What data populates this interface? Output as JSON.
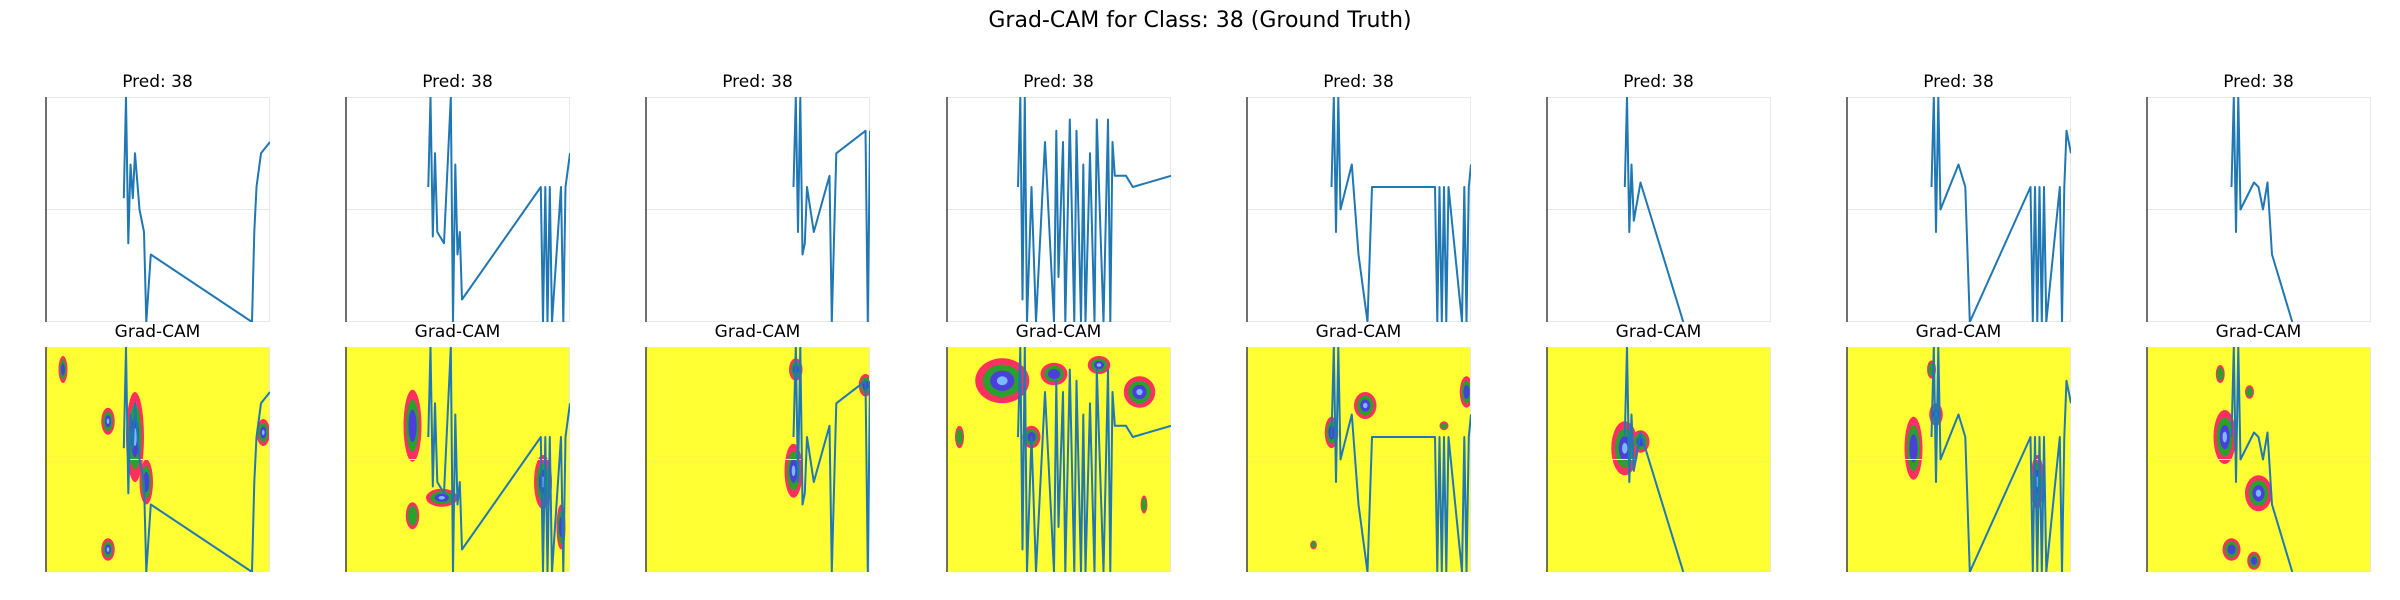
{
  "figure": {
    "title": "Grad-CAM for Class: 38 (Ground Truth)",
    "colors": {
      "trace": "#1f77b4",
      "heat_low": "#ffff33",
      "heat_edge": "#ff3060",
      "heat_mid": "#2ca02c",
      "heat_high": "#4a3fd8",
      "heat_peak": "#7ab8ff"
    }
  },
  "chart_data": [
    {
      "type": "line",
      "panel": 1,
      "row": "prediction",
      "title": "Pred: 38",
      "xlim": [
        0,
        100
      ],
      "ylim": [
        0,
        100
      ],
      "x": [
        35,
        36,
        37,
        38,
        39,
        40,
        42,
        44,
        45,
        47,
        92,
        93,
        94,
        96,
        100
      ],
      "y": [
        55,
        100,
        35,
        70,
        55,
        75,
        50,
        40,
        0,
        30,
        0,
        40,
        60,
        75,
        80
      ]
    },
    {
      "type": "line",
      "panel": 2,
      "row": "prediction",
      "title": "Pred: 38",
      "xlim": [
        0,
        100
      ],
      "ylim": [
        0,
        100
      ],
      "x": [
        37,
        38,
        39,
        40,
        41,
        44,
        47,
        48,
        49,
        50,
        51,
        52,
        87,
        88,
        89,
        90,
        91,
        92,
        96,
        97,
        98,
        100
      ],
      "y": [
        60,
        100,
        38,
        75,
        40,
        35,
        100,
        0,
        70,
        30,
        40,
        10,
        60,
        0,
        60,
        0,
        60,
        0,
        60,
        0,
        60,
        75
      ]
    },
    {
      "type": "line",
      "panel": 3,
      "row": "prediction",
      "title": "Pred: 38",
      "xlim": [
        0,
        100
      ],
      "ylim": [
        0,
        100
      ],
      "x": [
        66,
        67,
        68,
        69,
        70,
        71,
        72,
        75,
        82,
        83,
        85,
        98,
        99,
        100
      ],
      "y": [
        60,
        100,
        40,
        100,
        30,
        35,
        60,
        40,
        65,
        0,
        75,
        85,
        0,
        85
      ]
    },
    {
      "type": "line",
      "panel": 4,
      "row": "prediction",
      "title": "Pred: 38",
      "xlim": [
        0,
        100
      ],
      "ylim": [
        0,
        100
      ],
      "x": [
        32,
        33,
        34,
        35,
        36,
        38,
        40,
        44,
        48,
        49,
        50,
        52,
        53,
        55,
        57,
        58,
        60,
        61,
        62,
        64,
        66,
        67,
        68,
        70,
        72,
        73,
        74,
        75,
        80,
        83,
        100
      ],
      "y": [
        60,
        100,
        10,
        100,
        0,
        60,
        0,
        80,
        0,
        85,
        20,
        80,
        0,
        90,
        0,
        85,
        0,
        70,
        0,
        75,
        0,
        90,
        60,
        0,
        90,
        0,
        80,
        65,
        65,
        60,
        65
      ]
    },
    {
      "type": "line",
      "panel": 5,
      "row": "prediction",
      "title": "Pred: 38",
      "xlim": [
        0,
        100
      ],
      "ylim": [
        0,
        100
      ],
      "x": [
        38,
        39,
        40,
        41,
        42,
        47,
        50,
        54,
        56,
        84,
        85,
        86,
        87,
        88,
        89,
        90,
        96,
        97,
        98,
        99,
        100
      ],
      "y": [
        60,
        100,
        40,
        100,
        50,
        70,
        30,
        0,
        60,
        60,
        0,
        60,
        0,
        60,
        0,
        60,
        0,
        60,
        0,
        60,
        70
      ]
    },
    {
      "type": "line",
      "panel": 6,
      "row": "prediction",
      "title": "Pred: 38",
      "xlim": [
        0,
        100
      ],
      "ylim": [
        0,
        100
      ],
      "x": [
        35,
        36,
        37,
        38,
        39,
        42,
        61
      ],
      "y": [
        60,
        100,
        40,
        70,
        45,
        62,
        0
      ]
    },
    {
      "type": "line",
      "panel": 7,
      "row": "prediction",
      "title": "Pred: 38",
      "xlim": [
        0,
        100
      ],
      "ylim": [
        0,
        100
      ],
      "x": [
        38,
        39,
        40,
        41,
        42,
        50,
        53,
        55,
        82,
        83,
        84,
        85,
        86,
        87,
        88,
        89,
        95,
        96,
        97,
        98,
        100
      ],
      "y": [
        60,
        100,
        40,
        100,
        50,
        70,
        60,
        0,
        60,
        0,
        60,
        0,
        60,
        0,
        60,
        0,
        60,
        0,
        60,
        85,
        75
      ]
    },
    {
      "type": "line",
      "panel": 8,
      "row": "prediction",
      "title": "Pred: 38",
      "xlim": [
        0,
        100
      ],
      "ylim": [
        0,
        100
      ],
      "x": [
        38,
        39,
        40,
        41,
        42,
        48,
        50,
        52,
        54,
        56,
        65
      ],
      "y": [
        60,
        100,
        40,
        100,
        50,
        62,
        60,
        50,
        62,
        30,
        0
      ]
    },
    {
      "type": "heatmap",
      "panel": 1,
      "row": "grad-cam",
      "title": "Grad-CAM",
      "xlim": [
        0,
        100
      ],
      "ylim": [
        0,
        100
      ],
      "overlay": {
        "x": [
          35,
          36,
          37,
          38,
          39,
          40,
          42,
          44,
          45,
          47,
          92,
          93,
          94,
          96,
          100
        ],
        "y": [
          55,
          100,
          35,
          70,
          55,
          75,
          50,
          40,
          0,
          30,
          0,
          40,
          60,
          75,
          80
        ]
      },
      "hotspots": [
        {
          "x": 28,
          "y": 67,
          "rx": 3,
          "ry": 6,
          "intensity": 0.9
        },
        {
          "x": 28,
          "y": 10,
          "rx": 3,
          "ry": 5,
          "intensity": 0.95
        },
        {
          "x": 40,
          "y": 60,
          "rx": 4,
          "ry": 20,
          "intensity": 1.0
        },
        {
          "x": 45,
          "y": 40,
          "rx": 3,
          "ry": 10,
          "intensity": 0.8
        },
        {
          "x": 97,
          "y": 62,
          "rx": 3,
          "ry": 6,
          "intensity": 1.0
        },
        {
          "x": 8,
          "y": 90,
          "rx": 2,
          "ry": 6,
          "intensity": 0.7
        }
      ]
    },
    {
      "type": "heatmap",
      "panel": 2,
      "row": "grad-cam",
      "title": "Grad-CAM",
      "xlim": [
        0,
        100
      ],
      "ylim": [
        0,
        100
      ],
      "overlay": {
        "x": [
          37,
          38,
          39,
          40,
          41,
          44,
          47,
          48,
          49,
          50,
          51,
          52,
          87,
          88,
          89,
          90,
          91,
          92,
          96,
          97,
          98,
          100
        ],
        "y": [
          60,
          100,
          38,
          75,
          40,
          35,
          100,
          0,
          70,
          30,
          40,
          10,
          60,
          0,
          60,
          0,
          60,
          0,
          60,
          0,
          60,
          75
        ]
      },
      "hotspots": [
        {
          "x": 30,
          "y": 65,
          "rx": 4,
          "ry": 16,
          "intensity": 0.8
        },
        {
          "x": 43,
          "y": 33,
          "rx": 7,
          "ry": 4,
          "intensity": 0.95
        },
        {
          "x": 88,
          "y": 40,
          "rx": 4,
          "ry": 12,
          "intensity": 0.9
        },
        {
          "x": 96,
          "y": 20,
          "rx": 2,
          "ry": 10,
          "intensity": 0.7
        },
        {
          "x": 30,
          "y": 25,
          "rx": 3,
          "ry": 6,
          "intensity": 0.6
        }
      ]
    },
    {
      "type": "heatmap",
      "panel": 3,
      "row": "grad-cam",
      "title": "Grad-CAM",
      "xlim": [
        0,
        100
      ],
      "ylim": [
        0,
        100
      ],
      "overlay": {
        "x": [
          66,
          67,
          68,
          69,
          70,
          71,
          72,
          75,
          82,
          83,
          85,
          98,
          99,
          100
        ],
        "y": [
          60,
          100,
          40,
          100,
          30,
          35,
          60,
          40,
          65,
          0,
          75,
          85,
          0,
          85
        ]
      },
      "hotspots": [
        {
          "x": 66,
          "y": 45,
          "rx": 4,
          "ry": 12,
          "intensity": 1.0
        },
        {
          "x": 67,
          "y": 90,
          "rx": 3,
          "ry": 5,
          "intensity": 0.7
        },
        {
          "x": 98,
          "y": 83,
          "rx": 3,
          "ry": 5,
          "intensity": 0.8
        }
      ]
    },
    {
      "type": "heatmap",
      "panel": 4,
      "row": "grad-cam",
      "title": "Grad-CAM",
      "xlim": [
        0,
        100
      ],
      "ylim": [
        0,
        100
      ],
      "overlay": {
        "x": [
          32,
          33,
          34,
          35,
          36,
          38,
          40,
          44,
          48,
          49,
          50,
          52,
          53,
          55,
          57,
          58,
          60,
          61,
          62,
          64,
          66,
          67,
          68,
          70,
          72,
          73,
          74,
          75,
          80,
          83,
          100
        ],
        "y": [
          60,
          100,
          10,
          100,
          0,
          60,
          0,
          80,
          0,
          85,
          20,
          80,
          0,
          90,
          0,
          85,
          0,
          70,
          0,
          75,
          0,
          90,
          60,
          0,
          90,
          0,
          80,
          65,
          65,
          60,
          65
        ]
      },
      "hotspots": [
        {
          "x": 25,
          "y": 85,
          "rx": 12,
          "ry": 10,
          "intensity": 0.9
        },
        {
          "x": 48,
          "y": 88,
          "rx": 6,
          "ry": 5,
          "intensity": 0.8
        },
        {
          "x": 68,
          "y": 92,
          "rx": 5,
          "ry": 4,
          "intensity": 0.9
        },
        {
          "x": 86,
          "y": 80,
          "rx": 7,
          "ry": 7,
          "intensity": 1.0
        },
        {
          "x": 38,
          "y": 60,
          "rx": 4,
          "ry": 5,
          "intensity": 0.7
        },
        {
          "x": 6,
          "y": 60,
          "rx": 2,
          "ry": 5,
          "intensity": 0.6
        },
        {
          "x": 88,
          "y": 30,
          "rx": 1.5,
          "ry": 4,
          "intensity": 0.5
        }
      ]
    },
    {
      "type": "heatmap",
      "panel": 5,
      "row": "grad-cam",
      "title": "Grad-CAM",
      "xlim": [
        0,
        100
      ],
      "ylim": [
        0,
        100
      ],
      "overlay": {
        "x": [
          38,
          39,
          40,
          41,
          42,
          47,
          50,
          54,
          56,
          84,
          85,
          86,
          87,
          88,
          89,
          90,
          96,
          97,
          98,
          99,
          100
        ],
        "y": [
          60,
          100,
          40,
          100,
          50,
          70,
          30,
          0,
          60,
          60,
          0,
          60,
          0,
          60,
          0,
          60,
          0,
          60,
          0,
          60,
          70
        ]
      },
      "hotspots": [
        {
          "x": 38,
          "y": 62,
          "rx": 3,
          "ry": 7,
          "intensity": 0.8
        },
        {
          "x": 53,
          "y": 74,
          "rx": 5,
          "ry": 6,
          "intensity": 1.0
        },
        {
          "x": 98,
          "y": 80,
          "rx": 3,
          "ry": 7,
          "intensity": 0.7
        },
        {
          "x": 88,
          "y": 65,
          "rx": 2,
          "ry": 2,
          "intensity": 0.5
        },
        {
          "x": 30,
          "y": 12,
          "rx": 1.5,
          "ry": 2,
          "intensity": 0.4
        }
      ]
    },
    {
      "type": "heatmap",
      "panel": 6,
      "row": "grad-cam",
      "title": "Grad-CAM",
      "xlim": [
        0,
        100
      ],
      "ylim": [
        0,
        100
      ],
      "overlay": {
        "x": [
          35,
          36,
          37,
          38,
          39,
          42,
          61
        ],
        "y": [
          60,
          100,
          40,
          70,
          45,
          62,
          0
        ]
      },
      "hotspots": [
        {
          "x": 35,
          "y": 55,
          "rx": 6,
          "ry": 12,
          "intensity": 1.0
        },
        {
          "x": 42,
          "y": 58,
          "rx": 4,
          "ry": 5,
          "intensity": 0.7
        }
      ]
    },
    {
      "type": "heatmap",
      "panel": 7,
      "row": "grad-cam",
      "title": "Grad-CAM",
      "xlim": [
        0,
        100
      ],
      "ylim": [
        0,
        100
      ],
      "overlay": {
        "x": [
          38,
          39,
          40,
          41,
          42,
          50,
          53,
          55,
          82,
          83,
          84,
          85,
          86,
          87,
          88,
          89,
          95,
          96,
          97,
          98,
          100
        ],
        "y": [
          60,
          100,
          40,
          100,
          50,
          70,
          60,
          0,
          60,
          0,
          60,
          0,
          60,
          0,
          60,
          0,
          60,
          0,
          60,
          85,
          75
        ]
      },
      "hotspots": [
        {
          "x": 30,
          "y": 55,
          "rx": 4,
          "ry": 14,
          "intensity": 0.8
        },
        {
          "x": 40,
          "y": 70,
          "rx": 3,
          "ry": 5,
          "intensity": 0.9
        },
        {
          "x": 38,
          "y": 90,
          "rx": 2,
          "ry": 4,
          "intensity": 0.6
        },
        {
          "x": 85,
          "y": 40,
          "rx": 3,
          "ry": 12,
          "intensity": 0.9
        }
      ]
    },
    {
      "type": "heatmap",
      "panel": 8,
      "row": "grad-cam",
      "title": "Grad-CAM",
      "xlim": [
        0,
        100
      ],
      "ylim": [
        0,
        100
      ],
      "overlay": {
        "x": [
          38,
          39,
          40,
          41,
          42,
          48,
          50,
          52,
          54,
          56,
          65
        ],
        "y": [
          60,
          100,
          40,
          100,
          50,
          62,
          60,
          50,
          62,
          30,
          0
        ]
      },
      "hotspots": [
        {
          "x": 35,
          "y": 60,
          "rx": 5,
          "ry": 12,
          "intensity": 0.9
        },
        {
          "x": 50,
          "y": 35,
          "rx": 6,
          "ry": 8,
          "intensity": 1.0
        },
        {
          "x": 38,
          "y": 10,
          "rx": 4,
          "ry": 5,
          "intensity": 0.8
        },
        {
          "x": 33,
          "y": 88,
          "rx": 2,
          "ry": 4,
          "intensity": 0.6
        },
        {
          "x": 46,
          "y": 80,
          "rx": 2,
          "ry": 3,
          "intensity": 0.5
        },
        {
          "x": 48,
          "y": 5,
          "rx": 3,
          "ry": 4,
          "intensity": 0.8
        }
      ]
    }
  ]
}
